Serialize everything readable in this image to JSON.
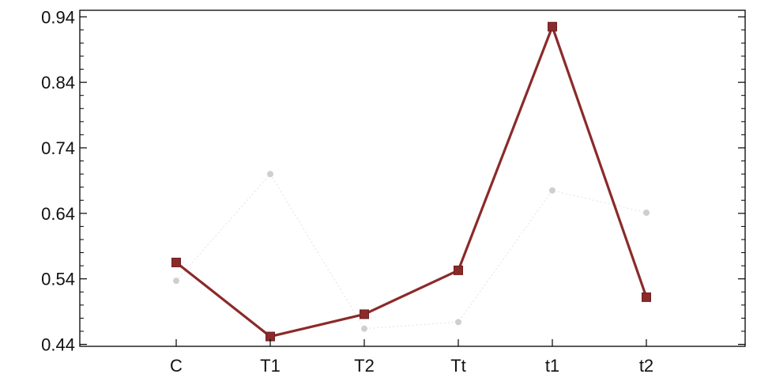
{
  "chart_data": {
    "type": "line",
    "title": "",
    "xlabel": "",
    "ylabel": "",
    "categories": [
      "C",
      "T1",
      "T2",
      "Tt",
      "t1",
      "t2"
    ],
    "yticks": [
      "0.44",
      "0.54",
      "0.64",
      "0.74",
      "0.84",
      "0.94"
    ],
    "ylim": [
      0.437,
      0.95
    ],
    "grid": false,
    "legend": "none",
    "series": [
      {
        "color": "#8b2a2a",
        "values": [
          0.565,
          0.452,
          0.486,
          0.553,
          0.925,
          0.512
        ]
      },
      {
        "color": "#cfcfcf",
        "values": [
          0.537,
          0.7,
          0.464,
          0.474,
          0.675,
          0.641
        ]
      }
    ]
  }
}
